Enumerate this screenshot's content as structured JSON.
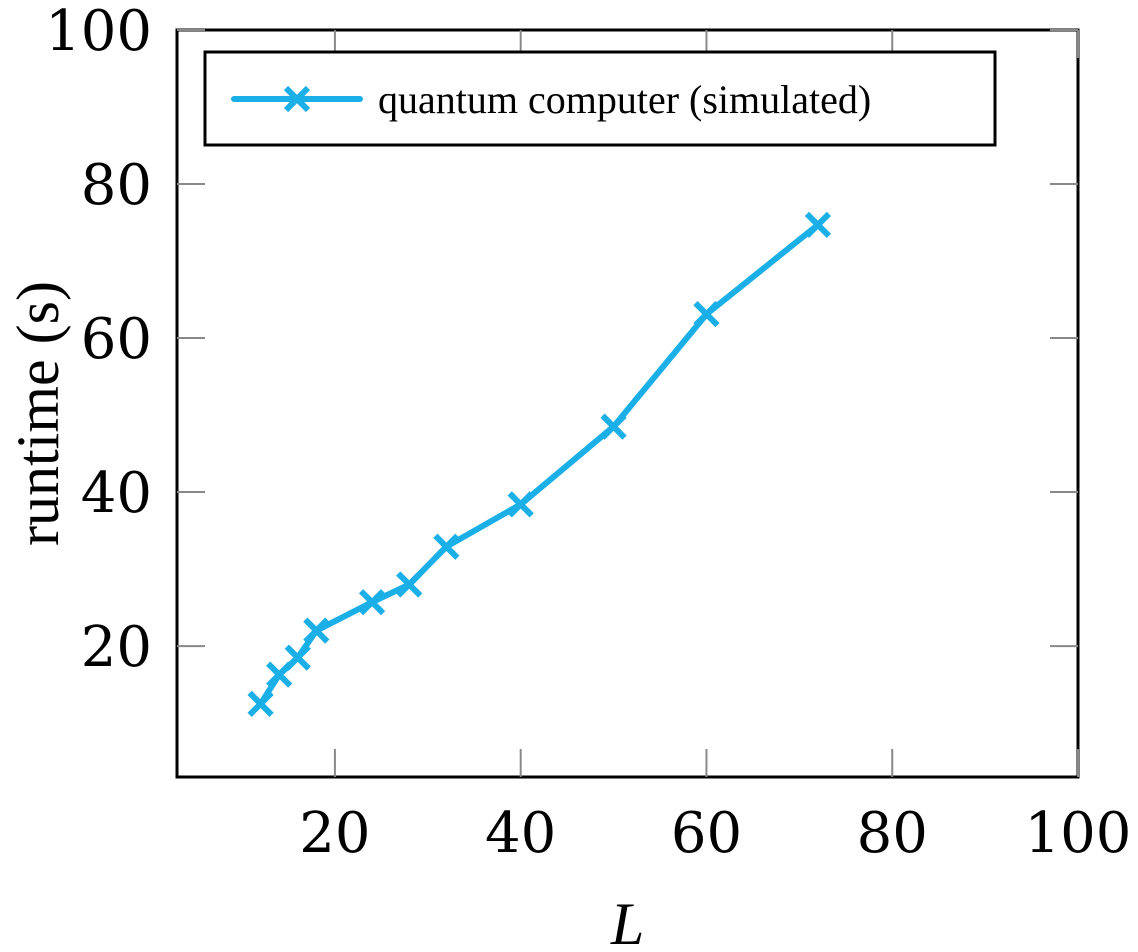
{
  "chart_data": {
    "type": "line",
    "title": "",
    "xlabel": "L",
    "ylabel": "runtime (s)",
    "xlim": [
      3,
      100
    ],
    "ylim": [
      3,
      100
    ],
    "xticks": [
      20,
      40,
      60,
      80,
      100
    ],
    "yticks": [
      20,
      40,
      60,
      80,
      100
    ],
    "xtick_labels": [
      "20",
      "40",
      "60",
      "80",
      "100"
    ],
    "ytick_labels": [
      "20",
      "40",
      "60",
      "80",
      "100"
    ],
    "grid": false,
    "legend_position": "top",
    "marker": "x",
    "series": [
      {
        "name": "quantum computer (simulated)",
        "color": "#1aafe6",
        "x": [
          12,
          14,
          16,
          18,
          24,
          28,
          32,
          40,
          50,
          60,
          72
        ],
        "y": [
          12.5,
          16.3,
          18.5,
          22.0,
          25.7,
          28.0,
          32.9,
          38.4,
          48.5,
          63.1,
          74.7
        ]
      }
    ]
  }
}
